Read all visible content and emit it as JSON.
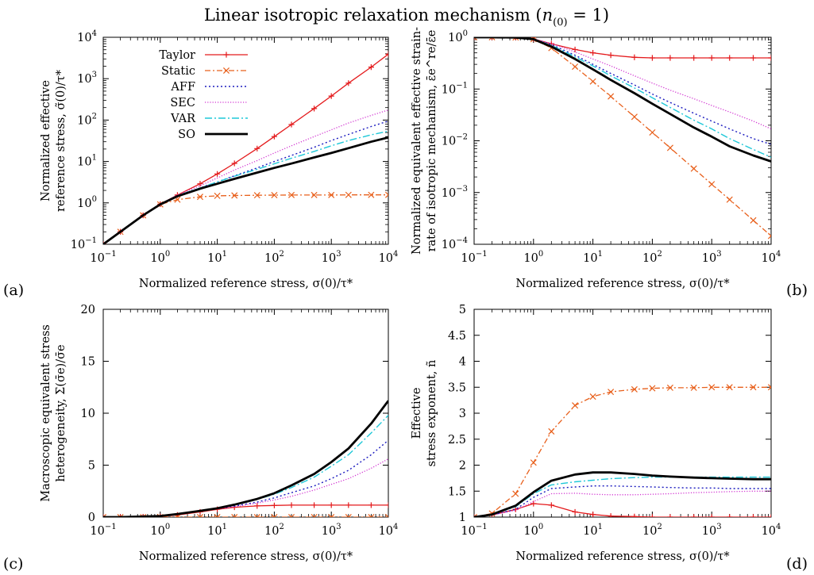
{
  "title": "Linear isotropic relaxation mechanism (n(0) = 1)",
  "series_styles": [
    {
      "name": "Taylor",
      "color": "#e41a1c",
      "dash": "",
      "width": 1.3,
      "marker": "plus"
    },
    {
      "name": "Static",
      "color": "#e8601c",
      "dash": "7,3,2,3",
      "width": 1.3,
      "marker": "cross"
    },
    {
      "name": "AFF",
      "color": "#1b1bbf",
      "dash": "2,3",
      "width": 1.4,
      "marker": ""
    },
    {
      "name": "SEC",
      "color": "#d235d2",
      "dash": "1.2,2",
      "width": 1.3,
      "marker": ""
    },
    {
      "name": "VAR",
      "color": "#1fc8d8",
      "dash": "9,3,2,3",
      "width": 1.4,
      "marker": ""
    },
    {
      "name": "SO",
      "color": "#000000",
      "dash": "",
      "width": 2.8,
      "marker": ""
    }
  ],
  "chart_data": [
    {
      "panel": "(a)",
      "type": "line",
      "xscale": "log",
      "yscale": "log",
      "xlim": [
        0.1,
        10000
      ],
      "ylim": [
        0.1,
        10000
      ],
      "xlabel": "Normalized reference stress, σ(0)/τ*",
      "ylabel": [
        "Normalized effective",
        "reference stress, σ̃(0)/τ*"
      ],
      "xticks": [
        "10-1",
        "100",
        "101",
        "102",
        "103",
        "104"
      ],
      "yticks": [
        "10-1",
        "100",
        "101",
        "102",
        "103",
        "104"
      ],
      "legend": "top-left",
      "x": [
        0.1,
        0.2,
        0.5,
        1,
        2,
        5,
        10,
        20,
        50,
        100,
        200,
        500,
        1000,
        2000,
        5000,
        10000
      ],
      "series": [
        {
          "name": "Taylor",
          "values": [
            0.1,
            0.2,
            0.5,
            0.93,
            1.55,
            2.9,
            5.0,
            9.0,
            20.5,
            40,
            78,
            190,
            380,
            780,
            1900,
            3900
          ]
        },
        {
          "name": "Static",
          "values": [
            0.1,
            0.2,
            0.5,
            0.92,
            1.2,
            1.4,
            1.48,
            1.51,
            1.53,
            1.54,
            1.55,
            1.55,
            1.55,
            1.56,
            1.56,
            1.56
          ]
        },
        {
          "name": "AFF",
          "values": [
            0.1,
            0.2,
            0.5,
            0.92,
            1.5,
            2.3,
            3.2,
            4.5,
            7.0,
            10,
            14,
            22,
            32,
            45,
            70,
            95
          ]
        },
        {
          "name": "SEC",
          "values": [
            0.1,
            0.2,
            0.5,
            0.93,
            1.55,
            2.6,
            4.0,
            6.2,
            10.5,
            16,
            24,
            40,
            58,
            85,
            130,
            175
          ]
        },
        {
          "name": "VAR",
          "values": [
            0.1,
            0.2,
            0.5,
            0.92,
            1.5,
            2.3,
            3.2,
            4.4,
            6.5,
            8.8,
            12,
            17.5,
            24,
            32,
            44,
            54
          ]
        },
        {
          "name": "SO",
          "values": [
            0.1,
            0.2,
            0.5,
            0.92,
            1.45,
            2.2,
            2.9,
            3.8,
            5.4,
            7.0,
            8.9,
            12.5,
            16,
            21,
            30,
            38
          ]
        }
      ]
    },
    {
      "panel": "(b)",
      "type": "line",
      "xscale": "log",
      "yscale": "log",
      "xlim": [
        0.1,
        10000
      ],
      "ylim": [
        0.0001,
        1
      ],
      "xlabel": "Normalized reference stress, σ(0)/τ*",
      "ylabel": [
        "Normalized equivalent effective strain-",
        "rate of isotropic mechanism, ε̄e^re/ε̄e"
      ],
      "xticks": [
        "10-1",
        "100",
        "101",
        "102",
        "103",
        "104"
      ],
      "yticks": [
        "10-4",
        "10-3",
        "10-2",
        "10-1",
        "100"
      ],
      "x": [
        0.1,
        0.2,
        0.5,
        1,
        2,
        5,
        10,
        20,
        50,
        100,
        200,
        500,
        1000,
        2000,
        5000,
        10000
      ],
      "series": [
        {
          "name": "Taylor",
          "values": [
            1,
            1,
            1,
            0.93,
            0.75,
            0.58,
            0.5,
            0.45,
            0.41,
            0.4,
            0.4,
            0.4,
            0.4,
            0.4,
            0.4,
            0.4
          ]
        },
        {
          "name": "Static",
          "values": [
            1,
            1,
            0.99,
            0.92,
            0.62,
            0.27,
            0.14,
            0.072,
            0.029,
            0.0145,
            0.0073,
            0.0029,
            0.00145,
            0.00073,
            0.00029,
            0.000145
          ]
        },
        {
          "name": "AFF",
          "values": [
            1,
            1,
            0.99,
            0.93,
            0.72,
            0.45,
            0.3,
            0.2,
            0.12,
            0.08,
            0.055,
            0.034,
            0.024,
            0.017,
            0.011,
            0.0085
          ]
        },
        {
          "name": "SEC",
          "values": [
            1,
            1,
            0.99,
            0.93,
            0.76,
            0.52,
            0.38,
            0.28,
            0.18,
            0.13,
            0.095,
            0.065,
            0.048,
            0.036,
            0.024,
            0.017
          ]
        },
        {
          "name": "VAR",
          "values": [
            1,
            1,
            0.99,
            0.93,
            0.7,
            0.42,
            0.28,
            0.18,
            0.105,
            0.068,
            0.044,
            0.025,
            0.017,
            0.011,
            0.0068,
            0.0048
          ]
        },
        {
          "name": "SO",
          "values": [
            1,
            1,
            0.99,
            0.92,
            0.66,
            0.38,
            0.24,
            0.15,
            0.083,
            0.052,
            0.033,
            0.018,
            0.012,
            0.0078,
            0.0052,
            0.004
          ]
        }
      ]
    },
    {
      "panel": "(c)",
      "type": "line",
      "xscale": "log",
      "yscale": "linear",
      "xlim": [
        0.1,
        10000
      ],
      "ylim": [
        0,
        20
      ],
      "xlabel": "Normalized reference stress, σ(0)/τ*",
      "ylabel": [
        "Macroscopic equivalent stress",
        "heterogeneity, Σ(σ̄e)/σ̄e"
      ],
      "xticks": [
        "10-1",
        "100",
        "101",
        "102",
        "103",
        "104"
      ],
      "yticks": [
        "0",
        "5",
        "10",
        "15",
        "20"
      ],
      "x": [
        0.1,
        0.2,
        0.5,
        1,
        2,
        5,
        10,
        20,
        50,
        100,
        200,
        500,
        1000,
        2000,
        5000,
        10000
      ],
      "series": [
        {
          "name": "Taylor",
          "values": [
            0,
            0,
            0.02,
            0.05,
            0.2,
            0.5,
            0.75,
            0.95,
            1.08,
            1.12,
            1.15,
            1.15,
            1.15,
            1.15,
            1.15,
            1.15
          ]
        },
        {
          "name": "Static",
          "values": [
            0,
            0,
            0,
            0,
            0,
            0,
            0,
            0,
            0,
            0,
            0,
            0,
            0,
            0,
            0,
            0
          ]
        },
        {
          "name": "AFF",
          "values": [
            0,
            0,
            0.05,
            0.1,
            0.3,
            0.6,
            0.8,
            1.05,
            1.45,
            1.85,
            2.35,
            3.0,
            3.7,
            4.5,
            6.0,
            7.4
          ]
        },
        {
          "name": "SEC",
          "values": [
            0,
            0,
            0.05,
            0.1,
            0.3,
            0.6,
            0.8,
            1.0,
            1.35,
            1.65,
            2.0,
            2.6,
            3.15,
            3.7,
            4.7,
            5.6
          ]
        },
        {
          "name": "VAR",
          "values": [
            0,
            0,
            0.05,
            0.1,
            0.3,
            0.6,
            0.85,
            1.15,
            1.7,
            2.2,
            2.85,
            3.85,
            4.9,
            6.0,
            8.1,
            9.8
          ]
        },
        {
          "name": "SO",
          "values": [
            0,
            0,
            0.05,
            0.1,
            0.3,
            0.6,
            0.85,
            1.2,
            1.75,
            2.3,
            3.05,
            4.15,
            5.3,
            6.6,
            9.0,
            11.2
          ]
        }
      ]
    },
    {
      "panel": "(d)",
      "type": "line",
      "xscale": "log",
      "yscale": "linear",
      "xlim": [
        0.1,
        10000
      ],
      "ylim": [
        1,
        5
      ],
      "xlabel": "Normalized reference stress, σ(0)/τ*",
      "ylabel": [
        "Effective",
        "stress exponent, ñ"
      ],
      "xticks": [
        "10-1",
        "100",
        "101",
        "102",
        "103",
        "104"
      ],
      "yticks": [
        "1",
        "1.5",
        "2",
        "2.5",
        "3",
        "3.5",
        "4",
        "4.5",
        "5"
      ],
      "x": [
        0.1,
        0.2,
        0.5,
        1,
        2,
        5,
        10,
        20,
        50,
        100,
        200,
        500,
        1000,
        2000,
        5000,
        10000
      ],
      "series": [
        {
          "name": "Taylor",
          "values": [
            1,
            1.04,
            1.15,
            1.26,
            1.23,
            1.1,
            1.05,
            1.02,
            1.01,
            1,
            1,
            1,
            1,
            1,
            1,
            1
          ]
        },
        {
          "name": "Static",
          "values": [
            1,
            1.07,
            1.45,
            2.05,
            2.65,
            3.15,
            3.32,
            3.41,
            3.46,
            3.48,
            3.49,
            3.49,
            3.5,
            3.5,
            3.5,
            3.5
          ]
        },
        {
          "name": "AFF",
          "values": [
            1,
            1.04,
            1.15,
            1.38,
            1.55,
            1.58,
            1.6,
            1.6,
            1.59,
            1.58,
            1.57,
            1.56,
            1.56,
            1.55,
            1.55,
            1.55
          ]
        },
        {
          "name": "SEC",
          "values": [
            1,
            1.04,
            1.13,
            1.3,
            1.45,
            1.46,
            1.44,
            1.43,
            1.43,
            1.44,
            1.45,
            1.47,
            1.48,
            1.49,
            1.5,
            1.5
          ]
        },
        {
          "name": "VAR",
          "values": [
            1,
            1.05,
            1.2,
            1.45,
            1.62,
            1.68,
            1.71,
            1.74,
            1.76,
            1.77,
            1.77,
            1.77,
            1.77,
            1.77,
            1.77,
            1.77
          ]
        },
        {
          "name": "SO",
          "values": [
            1,
            1.05,
            1.22,
            1.48,
            1.7,
            1.82,
            1.86,
            1.86,
            1.83,
            1.8,
            1.78,
            1.76,
            1.75,
            1.74,
            1.73,
            1.73
          ]
        }
      ]
    }
  ]
}
